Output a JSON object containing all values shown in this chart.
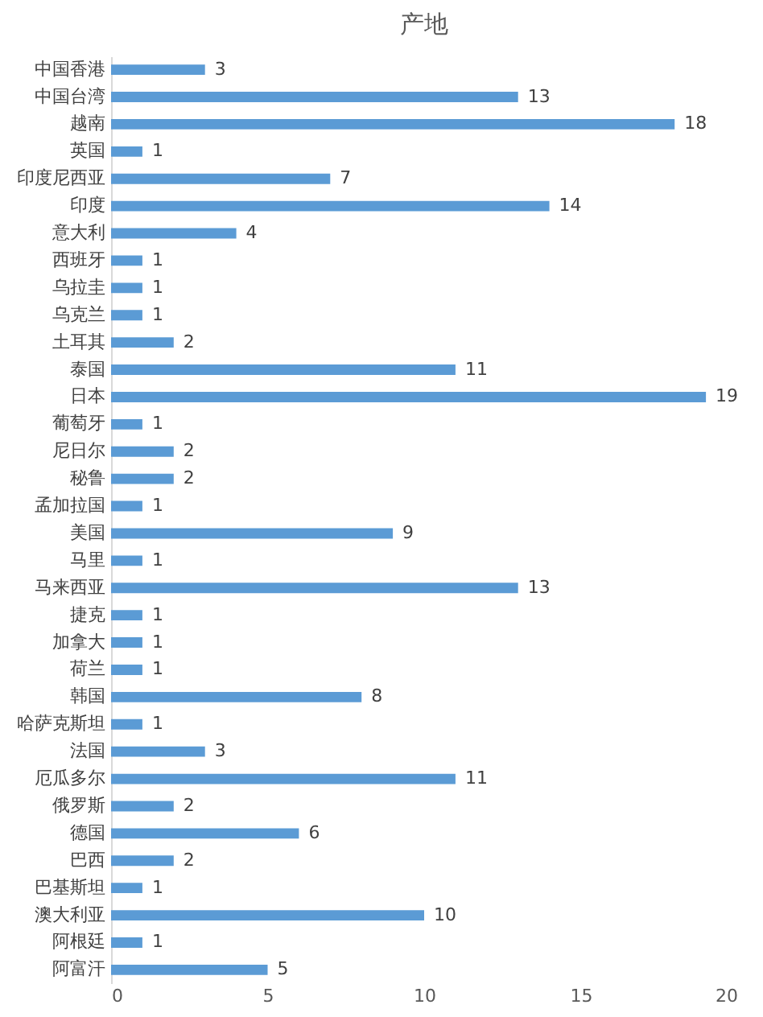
{
  "chart_data": {
    "type": "bar",
    "orientation": "horizontal",
    "title": "产地",
    "categories": [
      "中国香港",
      "中国台湾",
      "越南",
      "英国",
      "印度尼西亚",
      "印度",
      "意大利",
      "西班牙",
      "乌拉圭",
      "乌克兰",
      "土耳其",
      "泰国",
      "日本",
      "葡萄牙",
      "尼日尔",
      "秘鲁",
      "孟加拉国",
      "美国",
      "马里",
      "马来西亚",
      "捷克",
      "加拿大",
      "荷兰",
      "韩国",
      "哈萨克斯坦",
      "法国",
      "厄瓜多尔",
      "俄罗斯",
      "德国",
      "巴西",
      "巴基斯坦",
      "澳大利亚",
      "阿根廷",
      "阿富汗"
    ],
    "values": [
      3,
      13,
      18,
      1,
      7,
      14,
      4,
      1,
      1,
      1,
      2,
      11,
      19,
      1,
      2,
      2,
      1,
      9,
      1,
      13,
      1,
      1,
      1,
      8,
      1,
      3,
      11,
      2,
      6,
      2,
      1,
      10,
      1,
      5
    ],
    "color": "#5b9bd5",
    "xlim": [
      0,
      20
    ],
    "xticks": [
      0,
      5,
      10,
      15,
      20
    ],
    "data_labels": true
  }
}
